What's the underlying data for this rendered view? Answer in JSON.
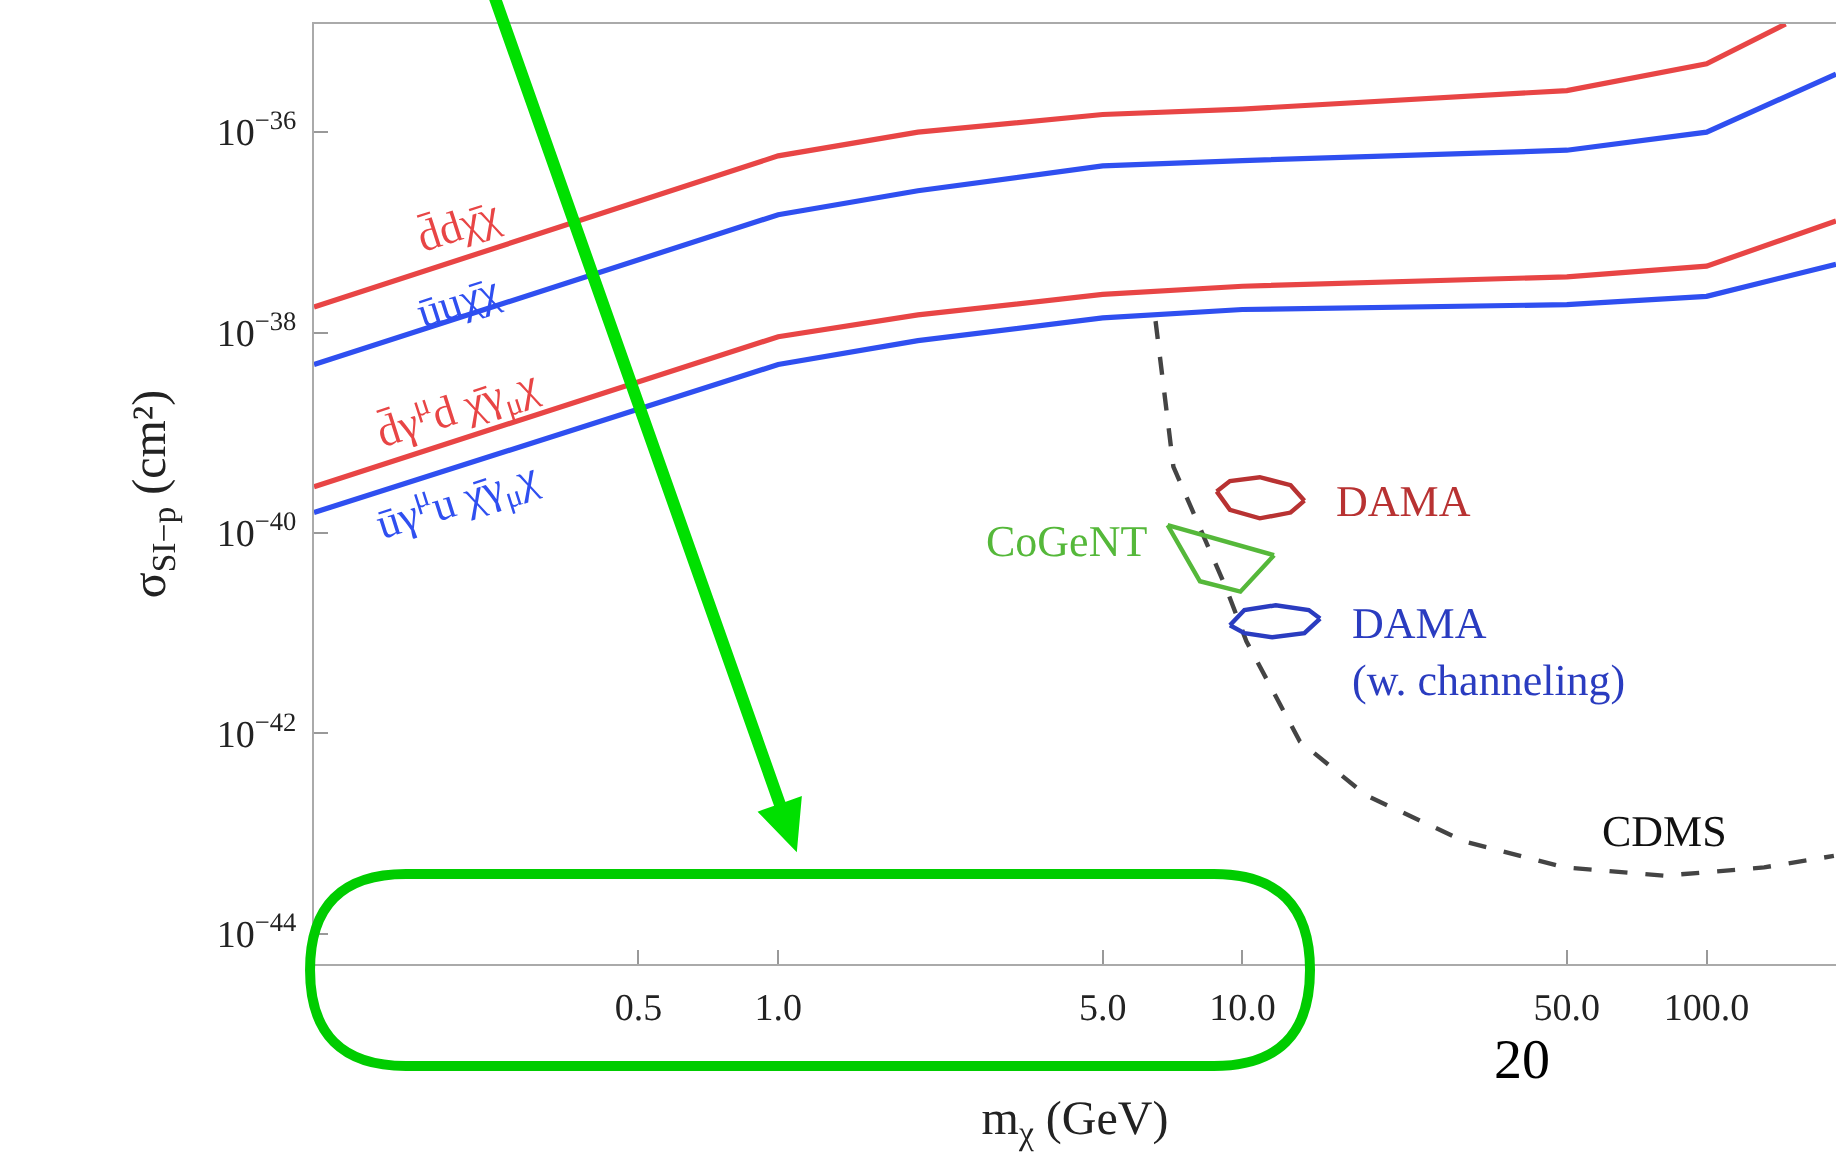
{
  "chart_data": {
    "type": "line",
    "log": "xy",
    "grid": false,
    "legend": false,
    "marker": "none",
    "line_style": "solid",
    "xlabel": "m$_{χ}$ (GeV)",
    "ylabel": "σ$_{SI−p}$ (cm²)",
    "xlim": [
      0.1,
      190
    ],
    "ylim": [
      5e-45,
      1.2e-35
    ],
    "xticks": [
      {
        "value": 0.5,
        "label": "0.5"
      },
      {
        "value": 1,
        "label": "1.0"
      },
      {
        "value": 5,
        "label": "5.0"
      },
      {
        "value": 10,
        "label": "10.0"
      },
      {
        "value": 50,
        "label": "50.0"
      },
      {
        "value": 100,
        "label": "100.0"
      }
    ],
    "yticks": [
      {
        "value": 1e-44,
        "label": "10$^{−44}$"
      },
      {
        "value": 1e-42,
        "label": "10$^{−42}$"
      },
      {
        "value": 1e-40,
        "label": "10$^{−40}$"
      },
      {
        "value": 1e-38,
        "label": "10$^{−38}$"
      },
      {
        "value": 1e-36,
        "label": "10$^{−36}$"
      }
    ],
    "series": [
      {
        "name": "d̄dχ̄χ",
        "color": "#e84545",
        "x": [
          0.1,
          1,
          2,
          5,
          10,
          50,
          100,
          148
        ],
        "values": [
          1.8e-38,
          5.8e-37,
          1e-36,
          1.5e-36,
          1.7e-36,
          2.6e-36,
          4.8e-36,
          1.2e-35
        ]
      },
      {
        "name": "ūuχ̄χ",
        "color": "#2f4ff0",
        "x": [
          0.1,
          1,
          2,
          5,
          10,
          50,
          100,
          190
        ],
        "values": [
          4.8e-39,
          1.5e-37,
          2.6e-37,
          4.6e-37,
          5.2e-37,
          6.6e-37,
          1e-36,
          3.8e-36
        ]
      },
      {
        "name": "d̄γ$^{μ}$d χ̄γ$_{μ}$χ",
        "color": "#e84545",
        "x": [
          0.1,
          1,
          2,
          5,
          10,
          50,
          100,
          190
        ],
        "values": [
          2.9e-40,
          9.1e-39,
          1.5e-38,
          2.4e-38,
          2.9e-38,
          3.6e-38,
          4.6e-38,
          1.3e-37
        ]
      },
      {
        "name": "ūγ$^{μ}$u χ̄γ$_{μ}$χ",
        "color": "#2f4ff0",
        "x": [
          0.1,
          1,
          2,
          5,
          10,
          50,
          100,
          190
        ],
        "values": [
          1.6e-40,
          4.8e-39,
          8.3e-39,
          1.4e-38,
          1.7e-38,
          1.9e-38,
          2.3e-38,
          4.8e-38
        ]
      },
      {
        "name": "CDMS",
        "line_style": "dashed",
        "color": "#444444",
        "x": [
          6.5,
          7.1,
          9.2,
          10.2,
          13.3,
          18.5,
          30.2,
          49.6,
          81,
          133,
          188
        ],
        "values": [
          1.3e-38,
          4.6e-40,
          2.9e-41,
          8.3e-42,
          8.3e-43,
          2.4e-43,
          8.3e-44,
          4.6e-44,
          3.8e-44,
          4.6e-44,
          6e-44
        ]
      },
      {
        "name": "DAMA",
        "color": "#b83232",
        "x": [
          8.8,
          9.4,
          10.9,
          12.7,
          13.6
        ],
        "values": [
          2.6e-40,
          3.3e-40,
          3.6e-40,
          3e-40,
          2.1e-40
        ]
      },
      {
        "color": "#b83232",
        "x": [
          8.8,
          9.4,
          10.9,
          12.7,
          13.6
        ],
        "values": [
          2.6e-40,
          1.7e-40,
          1.4e-40,
          1.6e-40,
          2.1e-40
        ]
      },
      {
        "name": "CoGeNT",
        "color": "#55b83a",
        "x": [
          6.9,
          11.7
        ],
        "values": [
          1.2e-40,
          6e-41
        ]
      },
      {
        "color": "#55b83a",
        "x": [
          6.9,
          8.1,
          9.9,
          11.7
        ],
        "values": [
          1.2e-40,
          3.3e-41,
          2.6e-41,
          6e-41
        ]
      },
      {
        "name": "DAMA\n(w. channeling)",
        "color": "#2a3cc0",
        "x": [
          9.4,
          10.1,
          11.8,
          13.9,
          14.7
        ],
        "values": [
          1.2e-41,
          1.7e-41,
          1.9e-41,
          1.7e-41,
          1.4e-41
        ]
      },
      {
        "color": "#2a3cc0",
        "x": [
          9.4,
          10.1,
          11.6,
          13.6,
          14.7
        ],
        "values": [
          1.2e-41,
          1e-41,
          9.1e-42,
          1e-41,
          1.4e-41
        ]
      }
    ],
    "annotations": [
      "20"
    ]
  }
}
